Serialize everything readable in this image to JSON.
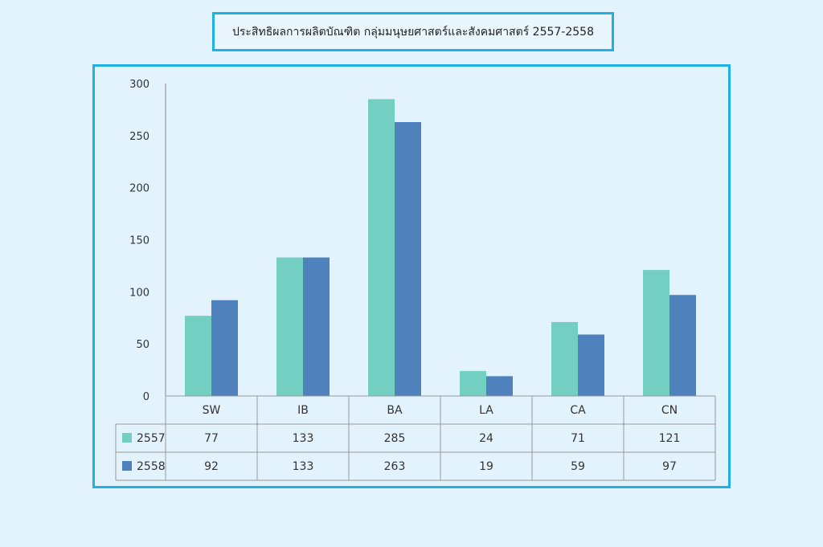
{
  "title": "ประสิทธิผลการผลิตบัณฑิต  กลุ่มมนุษยศาสตร์และสังคมศาสตร์ 2557-2558",
  "colors": {
    "frame": "#1fb0e6",
    "series_2557": "#72cfc1",
    "series_2558": "#4f81bd"
  },
  "chart_data": {
    "type": "bar",
    "title": "ประสิทธิผลการผลิตบัณฑิต  กลุ่มมนุษยศาสตร์และสังคมศาสตร์ 2557-2558",
    "categories": [
      "SW",
      "IB",
      "BA",
      "LA",
      "CA",
      "CN"
    ],
    "series": [
      {
        "name": "2557",
        "values": [
          77,
          133,
          285,
          24,
          71,
          121
        ]
      },
      {
        "name": "2558",
        "values": [
          92,
          133,
          263,
          19,
          59,
          97
        ]
      }
    ],
    "ylim": [
      0,
      300
    ],
    "yticks": [
      0,
      50,
      100,
      150,
      200,
      250,
      300
    ],
    "grid": false,
    "data_table": true
  }
}
